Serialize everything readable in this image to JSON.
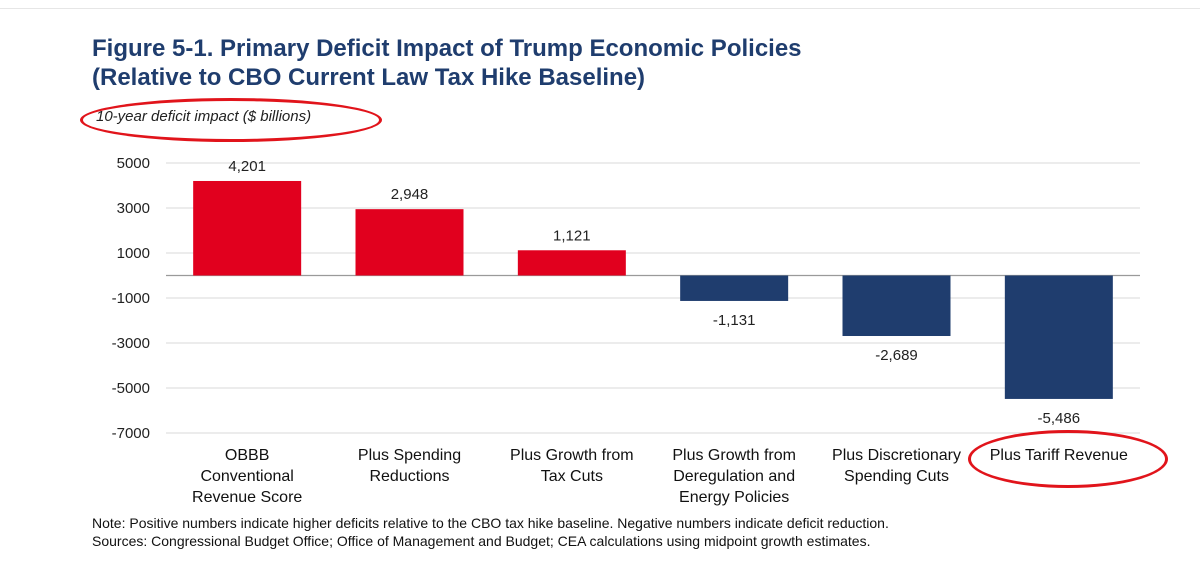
{
  "title_line1": "Figure 5-1. Primary Deficit Impact of Trump Economic Policies",
  "title_line2": "(Relative to CBO Current Law Tax Hike Baseline)",
  "note": "Note: Positive numbers indicate higher deficits relative to the CBO tax hike baseline. Negative numbers indicate deficit reduction.",
  "sources": "Sources: Congressional Budget Office; Office of Management and Budget; CEA calculations using midpoint growth estimates.",
  "colors": {
    "positive": "#e1001e",
    "negative": "#1f3d6e",
    "annotation_ring": "#e1141b",
    "title": "#1f3d6e"
  },
  "chart_data": {
    "type": "bar",
    "title": "Figure 5-1. Primary Deficit Impact of Trump Economic Policies (Relative to CBO Current Law Tax Hike Baseline)",
    "ylabel": "10-year deficit impact ($ billions)",
    "xlabel": "",
    "categories": [
      [
        "OBBB",
        "Conventional",
        "Revenue Score"
      ],
      [
        "Plus Spending",
        "Reductions"
      ],
      [
        "Plus Growth from",
        "Tax Cuts"
      ],
      [
        "Plus Growth from",
        "Deregulation and",
        "Energy Policies"
      ],
      [
        "Plus Discretionary",
        "Spending Cuts"
      ],
      [
        "Plus Tariff Revenue"
      ]
    ],
    "values": [
      4201,
      2948,
      1121,
      -1131,
      -2689,
      -5486
    ],
    "data_labels": [
      "4,201",
      "2,948",
      "1,121",
      "-1,131",
      "-2,689",
      "-5,486"
    ],
    "yticks": [
      5000,
      3000,
      1000,
      -1000,
      -3000,
      -5000,
      -7000
    ],
    "ylim": [
      -7000,
      5000
    ],
    "grid": true,
    "legend": "none",
    "annotations": [
      "red circle around y-axis unit label",
      "red circle around 'Plus Tariff Revenue' category"
    ]
  }
}
